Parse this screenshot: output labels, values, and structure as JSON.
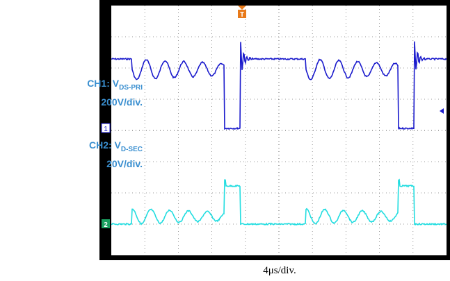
{
  "ch1": {
    "label": "CH1: V",
    "subscript": "DS-PRI",
    "scale": "200V/div."
  },
  "ch2": {
    "label": "CH2: V",
    "subscript": "D-SEC",
    "scale": "20V/div."
  },
  "markers": {
    "ch1": "1",
    "ch2": "2",
    "trigger": "T"
  },
  "time_scale": "4μs/div."
}
